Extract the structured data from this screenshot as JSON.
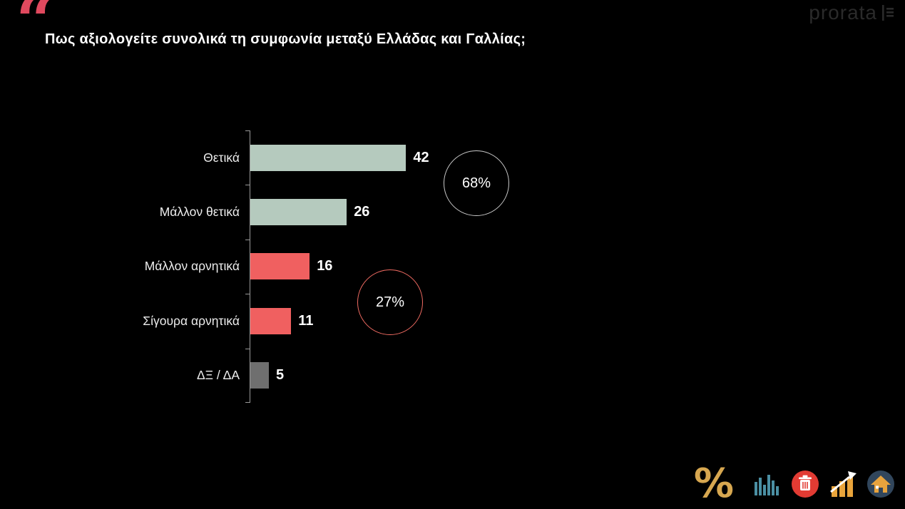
{
  "header": {
    "quote_glyph": "“",
    "title": "Πως αξιολογείτε συνολικά τη συμφωνία μεταξύ Ελλάδας και Γαλλίας;",
    "logo_text": "prorata",
    "quote_color": "#e0495e"
  },
  "chart_data": {
    "type": "bar",
    "orientation": "horizontal",
    "title": "Πως αξιολογείτε συνολικά τη συμφωνία μεταξύ Ελλάδας και Γαλλίας;",
    "categories": [
      "Θετικά",
      "Μάλλον θετικά",
      "Μάλλον αρνητικά",
      "Σίγουρα αρνητικά",
      "ΔΞ / ΔΑ"
    ],
    "values": [
      42,
      26,
      16,
      11,
      5
    ],
    "bar_colors": [
      "#b5cabe",
      "#b5cabe",
      "#f06060",
      "#f06060",
      "#6f6f6f"
    ],
    "xlim": [
      0,
      50
    ],
    "grid": false,
    "legend": "none",
    "annotations": [
      {
        "label": "68%",
        "ring_color": "#c9c9c9"
      },
      {
        "label": "27%",
        "ring_color": "#f06b62"
      }
    ]
  },
  "footer_icons": {
    "percent": {
      "glyph": "%",
      "color": "#d7a750"
    },
    "bar_chart": {
      "color": "#4b8fa3"
    },
    "trash": {
      "color": "#e23b33"
    },
    "growth_chart": {
      "color": "#e9a43b"
    },
    "house": {
      "color": "#31465c"
    }
  }
}
